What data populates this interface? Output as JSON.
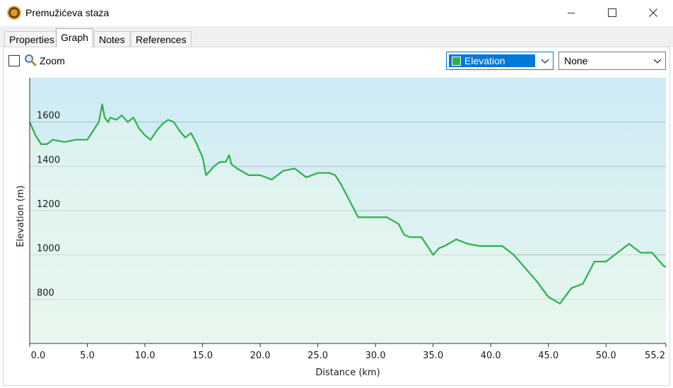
{
  "window": {
    "title": "Premužićeva staza"
  },
  "tabs": [
    {
      "label": "Properties",
      "active": false
    },
    {
      "label": "Graph",
      "active": true
    },
    {
      "label": "Notes",
      "active": false
    },
    {
      "label": "References",
      "active": false
    }
  ],
  "toolbar": {
    "zoom_label": "Zoom",
    "zoom_checked": false,
    "primary_series_select": "Elevation",
    "secondary_series_select": "None"
  },
  "colors": {
    "series": "#2cb04a",
    "selection": "#0078d7",
    "plot_bg_top": "#cdeaf5",
    "plot_bg_bottom": "#e8f7ee"
  },
  "chart_data": {
    "type": "area",
    "xlabel": "Distance  (km)",
    "ylabel": "Elevation (m)",
    "xlim": [
      0,
      55.2
    ],
    "ylim": [
      600,
      1800
    ],
    "x_ticks": [
      "0.0",
      "5.0",
      "10.0",
      "15.0",
      "20.0",
      "25.0",
      "30.0",
      "35.0",
      "40.0",
      "45.0",
      "50.0",
      "55.2"
    ],
    "y_ticks": [
      "800",
      "1000",
      "1200",
      "1400",
      "1600"
    ],
    "grid": "horizontal",
    "series": [
      {
        "x": [
          0,
          0.5,
          1,
          1.5,
          2,
          3,
          4,
          5,
          5.5,
          6,
          6.3,
          6.5,
          6.8,
          7,
          7.5,
          8,
          8.5,
          9,
          9.5,
          10,
          10.5,
          11,
          11.5,
          12,
          12.5,
          13,
          13.5,
          14,
          14.5,
          15,
          15.3,
          16,
          16.5,
          17,
          17.3,
          17.5,
          18,
          19,
          20,
          21,
          22,
          23,
          24,
          25,
          26,
          26.5,
          27,
          28,
          28.5,
          29,
          30,
          31,
          32,
          32.5,
          33,
          34,
          34.5,
          35,
          35.5,
          36,
          37,
          38,
          39,
          40,
          41,
          42,
          43,
          44,
          45,
          46,
          47,
          48,
          49,
          49.5,
          50,
          51,
          52,
          53,
          54,
          55,
          55.2
        ],
        "y": [
          1600,
          1540,
          1500,
          1500,
          1520,
          1510,
          1520,
          1520,
          1560,
          1600,
          1680,
          1620,
          1600,
          1620,
          1610,
          1630,
          1600,
          1620,
          1570,
          1540,
          1520,
          1560,
          1590,
          1610,
          1600,
          1560,
          1530,
          1550,
          1500,
          1440,
          1360,
          1400,
          1420,
          1420,
          1450,
          1410,
          1390,
          1360,
          1360,
          1340,
          1380,
          1390,
          1350,
          1370,
          1370,
          1360,
          1320,
          1220,
          1170,
          1170,
          1170,
          1170,
          1140,
          1090,
          1080,
          1080,
          1040,
          1000,
          1030,
          1040,
          1070,
          1050,
          1040,
          1040,
          1040,
          1000,
          940,
          880,
          810,
          780,
          850,
          870,
          970,
          970,
          970,
          1010,
          1050,
          1010,
          1010,
          950,
          945
        ]
      }
    ]
  }
}
